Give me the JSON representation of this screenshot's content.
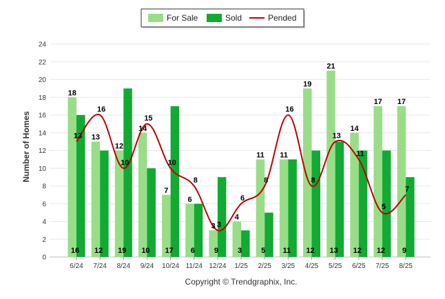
{
  "chart_data": {
    "type": "bar",
    "ylabel": "Number of Homes",
    "ylim": [
      0,
      24
    ],
    "yticks": [
      0,
      2,
      4,
      6,
      8,
      10,
      12,
      14,
      16,
      18,
      20,
      22,
      24
    ],
    "categories": [
      "6/24",
      "7/24",
      "8/24",
      "9/24",
      "10/24",
      "11/24",
      "12/24",
      "1/25",
      "2/25",
      "3/25",
      "4/25",
      "5/25",
      "6/25",
      "7/25",
      "8/25"
    ],
    "series": [
      {
        "name": "For Sale",
        "kind": "bar",
        "color": "#99dd88",
        "values": [
          18,
          13,
          12,
          14,
          7,
          6,
          3,
          4,
          11,
          11,
          19,
          21,
          14,
          17,
          17
        ]
      },
      {
        "name": "Sold",
        "kind": "bar",
        "color": "#11aa33",
        "values": [
          16,
          12,
          19,
          10,
          17,
          6,
          9,
          3,
          5,
          11,
          12,
          13,
          12,
          12,
          9
        ]
      },
      {
        "name": "Pended",
        "kind": "line",
        "color": "#bb0000",
        "values": [
          13,
          16,
          10,
          15,
          10,
          8,
          3,
          6,
          8,
          16,
          8,
          13,
          11,
          5,
          7
        ]
      }
    ],
    "legend_position": "top-center",
    "grid": true
  },
  "footer": {
    "copyright": "Copyright © Trendgraphix, Inc."
  }
}
